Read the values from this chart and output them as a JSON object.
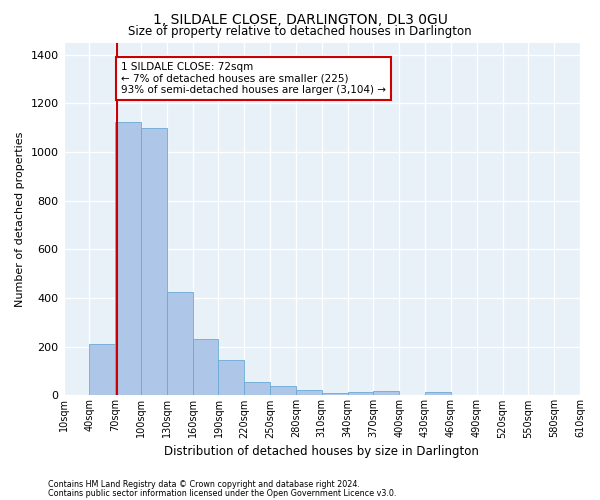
{
  "title": "1, SILDALE CLOSE, DARLINGTON, DL3 0GU",
  "subtitle": "Size of property relative to detached houses in Darlington",
  "xlabel": "Distribution of detached houses by size in Darlington",
  "ylabel": "Number of detached properties",
  "bar_color": "#aec6e8",
  "bar_edge_color": "#6aaad4",
  "background_color": "#e8f0f8",
  "grid_color": "#ffffff",
  "vline_x": 72,
  "vline_color": "#cc0000",
  "annotation_text": "1 SILDALE CLOSE: 72sqm\n← 7% of detached houses are smaller (225)\n93% of semi-detached houses are larger (3,104) →",
  "annotation_box_color": "#cc0000",
  "footnote1": "Contains HM Land Registry data © Crown copyright and database right 2024.",
  "footnote2": "Contains public sector information licensed under the Open Government Licence v3.0.",
  "bin_edges": [
    10,
    40,
    70,
    100,
    130,
    160,
    190,
    220,
    250,
    280,
    310,
    340,
    370,
    400,
    430,
    460,
    490,
    520,
    550,
    580,
    610
  ],
  "bin_labels": [
    "10sqm",
    "40sqm",
    "70sqm",
    "100sqm",
    "130sqm",
    "160sqm",
    "190sqm",
    "220sqm",
    "250sqm",
    "280sqm",
    "310sqm",
    "340sqm",
    "370sqm",
    "400sqm",
    "430sqm",
    "460sqm",
    "490sqm",
    "520sqm",
    "550sqm",
    "580sqm",
    "610sqm"
  ],
  "bar_heights": [
    0,
    210,
    1125,
    1100,
    425,
    230,
    145,
    57,
    37,
    22,
    10,
    15,
    17,
    0,
    13,
    0,
    0,
    0,
    0,
    0
  ],
  "ylim": [
    0,
    1450
  ],
  "yticks": [
    0,
    200,
    400,
    600,
    800,
    1000,
    1200,
    1400
  ],
  "figsize": [
    6.0,
    5.0
  ],
  "dpi": 100
}
